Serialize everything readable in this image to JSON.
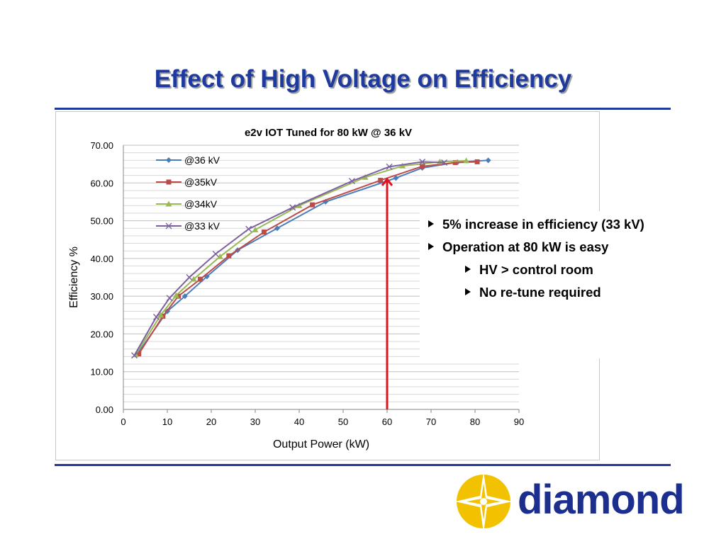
{
  "slide": {
    "title": "Effect of High Voltage on Efficiency",
    "bullets": [
      "5% increase in efficiency (33 kV)",
      "Operation at 80 kW is easy",
      "HV > control room",
      "No re-tune required"
    ],
    "logo_text": "diamond",
    "colors": {
      "title": "#1f3a9e",
      "rule": "#1f3a9e",
      "logo_text": "#1c2f8f",
      "logo_sun": "#f2c200",
      "arrow": "#e0141e"
    }
  },
  "chart_data": {
    "type": "line",
    "title": "e2v IOT Tuned for 80 kW @ 36 kV",
    "xlabel": "Output Power (kW)",
    "ylabel": "Efficiency %",
    "xlim": [
      0,
      90
    ],
    "ylim": [
      0,
      70
    ],
    "x_ticks": [
      "0",
      "10",
      "20",
      "30",
      "40",
      "50",
      "60",
      "70",
      "80",
      "90"
    ],
    "y_ticks": [
      "0.00",
      "10.00",
      "20.00",
      "30.00",
      "40.00",
      "50.00",
      "60.00",
      "70.00"
    ],
    "grid": "horizontal",
    "legend": "top-left",
    "annotation": {
      "type": "arrow",
      "x": 60,
      "y_from": 0,
      "y_to": 61,
      "color": "#e0141e"
    },
    "series": [
      {
        "name": "@36 kV",
        "color": "#4a7ebb",
        "marker": "diamond",
        "x": [
          3.5,
          10,
          14,
          19,
          26,
          35,
          46,
          62,
          68,
          76,
          83
        ],
        "y": [
          15.2,
          26,
          30,
          35.2,
          42.2,
          48,
          55,
          61.3,
          64,
          65.5,
          66
        ]
      },
      {
        "name": "@35kV",
        "color": "#be4b48",
        "marker": "square",
        "x": [
          3.5,
          9,
          12.5,
          17.5,
          24,
          32,
          43,
          58.5,
          68,
          75.5,
          80.5
        ],
        "y": [
          14.7,
          24.7,
          30,
          34.5,
          40.7,
          47,
          54.2,
          60.7,
          64.4,
          65.4,
          65.6
        ]
      },
      {
        "name": "@34kV",
        "color": "#98b954",
        "marker": "triangle",
        "x": [
          2.8,
          8.5,
          12,
          16,
          22,
          30,
          40,
          55,
          63.5,
          72,
          78
        ],
        "y": [
          14.5,
          25,
          30.2,
          34.5,
          40.5,
          47.6,
          54,
          61.5,
          64.5,
          65.6,
          65.9
        ]
      },
      {
        "name": "@33 kV",
        "color": "#7d60a0",
        "marker": "x",
        "x": [
          2.5,
          7.5,
          10.5,
          15,
          21,
          28.5,
          38.5,
          52,
          60.5,
          68,
          73
        ],
        "y": [
          14.3,
          24.5,
          29.5,
          35,
          41.2,
          47.8,
          53.5,
          60.5,
          64.3,
          65.6,
          65.4
        ]
      }
    ]
  }
}
